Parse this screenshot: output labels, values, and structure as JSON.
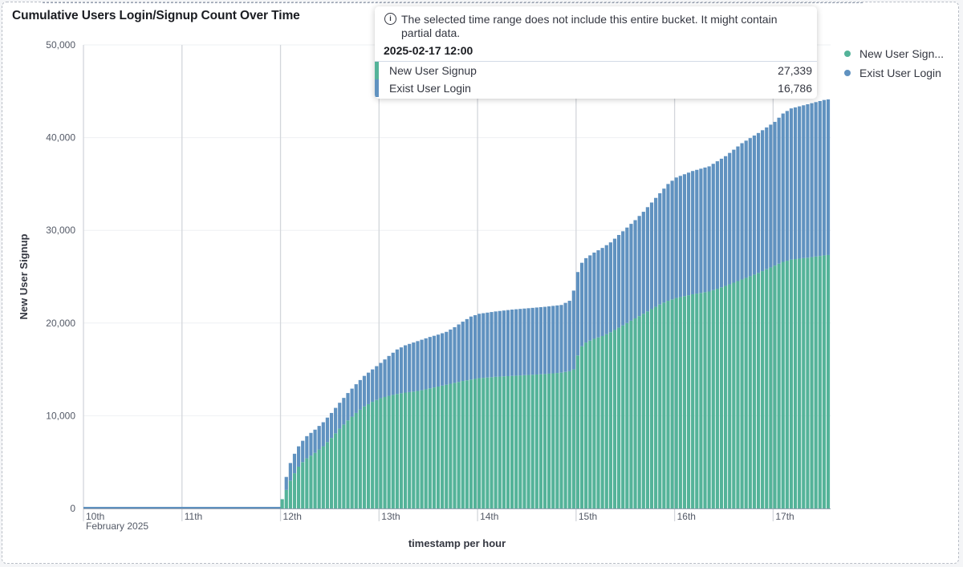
{
  "panel": {
    "title": "Cumulative Users Login/Signup Count Over Time"
  },
  "legend": {
    "items": [
      {
        "label": "New User Sign...",
        "color": "#54b399"
      },
      {
        "label": "Exist User Login",
        "color": "#6092c0"
      }
    ]
  },
  "tooltip": {
    "note": "The selected time range does not include this entire bucket. It might contain partial data.",
    "icon": "info-icon",
    "date": "2025-02-17 12:00",
    "rows": [
      {
        "label": "New User Signup",
        "value": "27,339",
        "color": "#54b399"
      },
      {
        "label": "Exist User Login",
        "value": "16,786",
        "color": "#6092c0"
      }
    ]
  },
  "chart_data": {
    "type": "bar",
    "stacked": true,
    "interval": "1 hour",
    "title": "Cumulative Users Login/Signup Count Over Time",
    "xlabel": "timestamp per hour",
    "ylabel": "New User Signup",
    "ylim": [
      0,
      50000
    ],
    "y_ticks": [
      0,
      10000,
      20000,
      30000,
      40000,
      50000
    ],
    "y_tick_labels": [
      "0",
      "10,000",
      "20,000",
      "30,000",
      "40,000",
      "50,000"
    ],
    "x_ticks": [
      {
        "label": "10th",
        "sublabel": "February 2025",
        "hour": 0
      },
      {
        "label": "11th",
        "sublabel": "",
        "hour": 24
      },
      {
        "label": "12th",
        "sublabel": "",
        "hour": 48
      },
      {
        "label": "13th",
        "sublabel": "",
        "hour": 72
      },
      {
        "label": "14th",
        "sublabel": "",
        "hour": 96
      },
      {
        "label": "15th",
        "sublabel": "",
        "hour": 120
      },
      {
        "label": "16th",
        "sublabel": "",
        "hour": 144
      },
      {
        "label": "17th",
        "sublabel": "",
        "hour": 168
      }
    ],
    "x_range_hours": [
      0,
      181
    ],
    "grid": true,
    "legend_position": "right",
    "series": [
      {
        "name": "New User Signup",
        "color": "#54b399",
        "points": [
          [
            0,
            0
          ],
          [
            47,
            0
          ],
          [
            48,
            1000
          ],
          [
            49,
            2000
          ],
          [
            50,
            3000
          ],
          [
            51,
            3800
          ],
          [
            52,
            4500
          ],
          [
            53,
            5000
          ],
          [
            54,
            5400
          ],
          [
            56,
            6000
          ],
          [
            58,
            6700
          ],
          [
            60,
            7600
          ],
          [
            62,
            8600
          ],
          [
            64,
            9500
          ],
          [
            66,
            10300
          ],
          [
            68,
            11000
          ],
          [
            70,
            11500
          ],
          [
            72,
            11900
          ],
          [
            74,
            12150
          ],
          [
            76,
            12350
          ],
          [
            78,
            12500
          ],
          [
            80,
            12600
          ],
          [
            82,
            12750
          ],
          [
            84,
            12950
          ],
          [
            86,
            13150
          ],
          [
            88,
            13350
          ],
          [
            90,
            13550
          ],
          [
            92,
            13750
          ],
          [
            94,
            13900
          ],
          [
            96,
            14050
          ],
          [
            100,
            14200
          ],
          [
            104,
            14300
          ],
          [
            108,
            14400
          ],
          [
            112,
            14500
          ],
          [
            116,
            14650
          ],
          [
            118,
            14800
          ],
          [
            119,
            15000
          ],
          [
            120,
            16500
          ],
          [
            121,
            17500
          ],
          [
            122,
            17900
          ],
          [
            124,
            18300
          ],
          [
            126,
            18600
          ],
          [
            128,
            19000
          ],
          [
            130,
            19500
          ],
          [
            132,
            20000
          ],
          [
            134,
            20500
          ],
          [
            136,
            21000
          ],
          [
            138,
            21500
          ],
          [
            140,
            22000
          ],
          [
            142,
            22400
          ],
          [
            144,
            22700
          ],
          [
            148,
            23100
          ],
          [
            152,
            23400
          ],
          [
            156,
            24000
          ],
          [
            160,
            24700
          ],
          [
            164,
            25400
          ],
          [
            168,
            26200
          ],
          [
            170,
            26600
          ],
          [
            172,
            26850
          ],
          [
            176,
            27050
          ],
          [
            180,
            27300
          ],
          [
            181,
            27339
          ]
        ]
      },
      {
        "name": "Exist User Login",
        "color": "#6092c0",
        "points": [
          [
            0,
            0
          ],
          [
            47,
            0
          ],
          [
            48,
            0
          ],
          [
            49,
            1400
          ],
          [
            50,
            1900
          ],
          [
            51,
            2100
          ],
          [
            52,
            2200
          ],
          [
            53,
            2300
          ],
          [
            54,
            2400
          ],
          [
            56,
            2500
          ],
          [
            58,
            2600
          ],
          [
            60,
            2700
          ],
          [
            62,
            2800
          ],
          [
            64,
            2950
          ],
          [
            66,
            3100
          ],
          [
            68,
            3300
          ],
          [
            70,
            3500
          ],
          [
            72,
            3800
          ],
          [
            74,
            4300
          ],
          [
            76,
            4800
          ],
          [
            78,
            5100
          ],
          [
            80,
            5300
          ],
          [
            82,
            5450
          ],
          [
            84,
            5550
          ],
          [
            86,
            5600
          ],
          [
            88,
            5700
          ],
          [
            90,
            6000
          ],
          [
            92,
            6400
          ],
          [
            94,
            6800
          ],
          [
            96,
            6950
          ],
          [
            100,
            7050
          ],
          [
            104,
            7150
          ],
          [
            108,
            7200
          ],
          [
            112,
            7250
          ],
          [
            116,
            7300
          ],
          [
            118,
            7600
          ],
          [
            119,
            8500
          ],
          [
            120,
            9000
          ],
          [
            121,
            9000
          ],
          [
            122,
            9100
          ],
          [
            124,
            9300
          ],
          [
            126,
            9500
          ],
          [
            128,
            9700
          ],
          [
            130,
            10000
          ],
          [
            132,
            10300
          ],
          [
            134,
            10600
          ],
          [
            136,
            11000
          ],
          [
            138,
            11500
          ],
          [
            140,
            12000
          ],
          [
            142,
            12600
          ],
          [
            144,
            13000
          ],
          [
            148,
            13300
          ],
          [
            152,
            13500
          ],
          [
            156,
            14000
          ],
          [
            160,
            14700
          ],
          [
            164,
            15100
          ],
          [
            168,
            15500
          ],
          [
            170,
            16000
          ],
          [
            172,
            16300
          ],
          [
            176,
            16550
          ],
          [
            180,
            16760
          ],
          [
            181,
            16786
          ]
        ]
      }
    ]
  }
}
